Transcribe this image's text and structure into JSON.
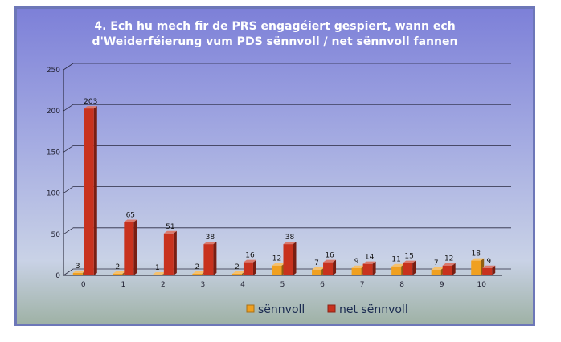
{
  "chart_data": {
    "type": "bar",
    "title_line1": "4. Ech hu mech fir de PRS engagéiert gespiert, wann ech",
    "title_line2": "d'Weiderféierung vum PDS sënnvoll / net sënnvoll fannen",
    "categories": [
      "0",
      "1",
      "2",
      "3",
      "4",
      "5",
      "6",
      "7",
      "8",
      "9",
      "10"
    ],
    "series": [
      {
        "name": "sënnvoll",
        "color": "#f0a020",
        "values": [
          3,
          2,
          1,
          2,
          2,
          12,
          7,
          9,
          11,
          7,
          18
        ]
      },
      {
        "name": "net sënnvoll",
        "color": "#c8321e",
        "values": [
          203,
          65,
          51,
          38,
          16,
          38,
          16,
          14,
          15,
          12,
          9
        ]
      }
    ],
    "yticks": [
      "0",
      "50",
      "100",
      "150",
      "200",
      "250"
    ],
    "ylim": [
      0,
      250
    ],
    "grid": true,
    "legend_position": "bottom"
  }
}
